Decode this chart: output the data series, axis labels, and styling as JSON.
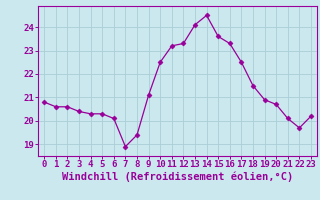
{
  "x": [
    0,
    1,
    2,
    3,
    4,
    5,
    6,
    7,
    8,
    9,
    10,
    11,
    12,
    13,
    14,
    15,
    16,
    17,
    18,
    19,
    20,
    21,
    22,
    23
  ],
  "y": [
    20.8,
    20.6,
    20.6,
    20.4,
    20.3,
    20.3,
    20.1,
    18.9,
    19.4,
    21.1,
    22.5,
    23.2,
    23.3,
    24.1,
    24.5,
    23.6,
    23.3,
    22.5,
    21.5,
    20.9,
    20.7,
    20.1,
    19.7,
    20.2
  ],
  "line_color": "#990099",
  "marker": "D",
  "marker_size": 2.5,
  "bg_color": "#cce8ef",
  "grid_color": "#aacdd6",
  "xlabel": "Windchill (Refroidissement éolien,°C)",
  "xlabel_fontsize": 7.5,
  "tick_fontsize": 6.5,
  "ylim": [
    18.5,
    24.9
  ],
  "yticks": [
    19,
    20,
    21,
    22,
    23,
    24
  ],
  "xticks": [
    0,
    1,
    2,
    3,
    4,
    5,
    6,
    7,
    8,
    9,
    10,
    11,
    12,
    13,
    14,
    15,
    16,
    17,
    18,
    19,
    20,
    21,
    22,
    23
  ]
}
